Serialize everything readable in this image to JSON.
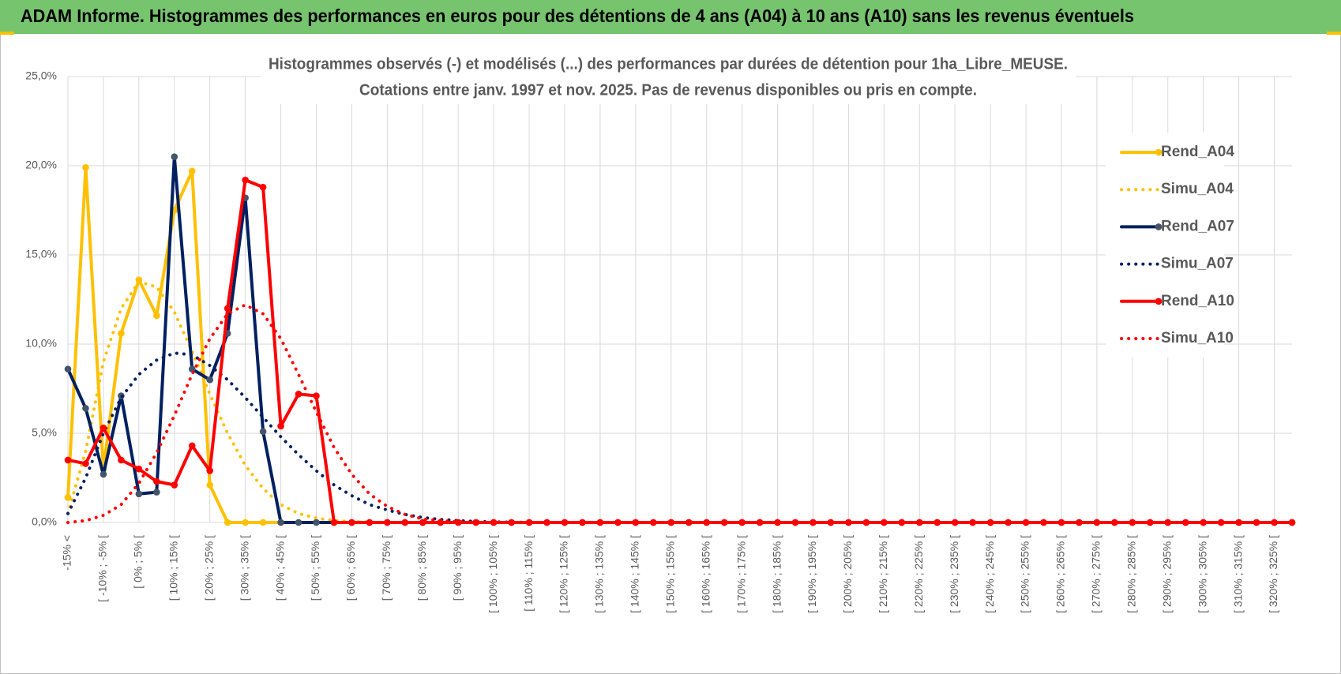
{
  "header": {
    "title": "ADAM Informe. Histogrammes des performances en euros pour des détentions de 4 ans (A04) à 10 ans (A10) sans les revenus éventuels"
  },
  "chart_data": {
    "type": "line",
    "title": "Histogrammes observés (-) et modélisés (...) des performances par durées de détention pour 1ha_Libre_MEUSE.",
    "subtitle": "Cotations entre janv. 1997 et nov. 2025. Pas de revenus disponibles ou pris en compte.",
    "categories": [
      "-15% <",
      null,
      "[ -10% ; -5% [",
      null,
      "[ 0% ; 5% [",
      null,
      "[ 10% ; 15% [",
      null,
      "[ 20% ; 25% [",
      null,
      "[ 30% ; 35% [",
      null,
      "[ 40% ; 45% [",
      null,
      "[ 50% ; 55% [",
      null,
      "[ 60% ; 65% [",
      null,
      "[ 70% ; 75% [",
      null,
      "[ 80% ; 85% [",
      null,
      "[ 90% ; 95% [",
      null,
      "[ 100% ; 105% [",
      null,
      "[ 110% ; 115% [",
      null,
      "[ 120% ; 125% [",
      null,
      "[ 130% ; 135% [",
      null,
      "[ 140% ; 145% [",
      null,
      "[ 150% ; 155% [",
      null,
      "[ 160% ; 165% [",
      null,
      "[ 170% ; 175% [",
      null,
      "[ 180% ; 185% [",
      null,
      "[ 190% ; 195% [",
      null,
      "[ 200% ; 205% [",
      null,
      "[ 210% ; 215% [",
      null,
      "[ 220% ; 225% [",
      null,
      "[ 230% ; 235% [",
      null,
      "[ 240% ; 245% [",
      null,
      "[ 250% ; 255% [",
      null,
      "[ 260% ; 265% [",
      null,
      "[ 270% ; 275% [",
      null,
      "[ 280% ; 285% [",
      null,
      "[ 290% ; 295% [",
      null,
      "[ 300% ; 305% [",
      null,
      "[ 310% ; 315% [",
      null,
      "[ 320% ; 325% [",
      null
    ],
    "series": [
      {
        "name": "Rend_A04",
        "color": "#ffc000",
        "line_style": "solid",
        "markers": true,
        "values": [
          1.4,
          19.9,
          3.0,
          10.6,
          13.6,
          11.6,
          17.5,
          19.7,
          2.1,
          0,
          0,
          0,
          0,
          0,
          0,
          0,
          0,
          0,
          0,
          0,
          0,
          0,
          0,
          0,
          0,
          0,
          0,
          0,
          0,
          0,
          0,
          0,
          0,
          0,
          0,
          0,
          0,
          0,
          0,
          0,
          0,
          0,
          0,
          0,
          0,
          0,
          0,
          0,
          0,
          0,
          0,
          0,
          0,
          0,
          0,
          0,
          0,
          0,
          0,
          0,
          0,
          0,
          0,
          0,
          0,
          0,
          0,
          0,
          0,
          0
        ]
      },
      {
        "name": "Simu_A04",
        "color": "#ffc000",
        "line_style": "dotted",
        "markers": false,
        "values": [
          0.5,
          4,
          9,
          12,
          13.5,
          13.2,
          11.8,
          9.6,
          7.2,
          5,
          3.2,
          1.9,
          1.0,
          0.5,
          0.25,
          0.1,
          0.05,
          0.02,
          0,
          0,
          0,
          0,
          0,
          0,
          0,
          0,
          0,
          0,
          0,
          0,
          0,
          0,
          0,
          0,
          0,
          0,
          0,
          0,
          0,
          0,
          0,
          0,
          0,
          0,
          0,
          0,
          0,
          0,
          0,
          0,
          0,
          0,
          0,
          0,
          0,
          0,
          0,
          0,
          0,
          0,
          0,
          0,
          0,
          0,
          0,
          0,
          0,
          0,
          0,
          0
        ]
      },
      {
        "name": "Rend_A07",
        "color": "#002060",
        "marker_color": "#44546a",
        "line_style": "solid",
        "markers": true,
        "values": [
          8.6,
          6.4,
          2.7,
          7.1,
          1.6,
          1.7,
          20.5,
          8.6,
          8.0,
          10.6,
          18.2,
          5.1,
          0,
          0,
          0,
          0,
          0,
          0,
          0,
          0,
          0,
          0,
          0,
          0,
          0,
          0,
          0,
          0,
          0,
          0,
          0,
          0,
          0,
          0,
          0,
          0,
          0,
          0,
          0,
          0,
          0,
          0,
          0,
          0,
          0,
          0,
          0,
          0,
          0,
          0,
          0,
          0,
          0,
          0,
          0,
          0,
          0,
          0,
          0,
          0,
          0,
          0,
          0,
          0,
          0,
          0,
          0,
          0,
          0,
          0
        ]
      },
      {
        "name": "Simu_A07",
        "color": "#002060",
        "line_style": "dotted",
        "markers": false,
        "values": [
          0.5,
          2.5,
          5,
          7,
          8.3,
          9.1,
          9.5,
          9.4,
          8.8,
          8.0,
          7.0,
          5.9,
          4.8,
          3.8,
          2.9,
          2.1,
          1.5,
          1.0,
          0.7,
          0.45,
          0.28,
          0.17,
          0.1,
          0.06,
          0.03,
          0.02,
          0,
          0,
          0,
          0,
          0,
          0,
          0,
          0,
          0,
          0,
          0,
          0,
          0,
          0,
          0,
          0,
          0,
          0,
          0,
          0,
          0,
          0,
          0,
          0,
          0,
          0,
          0,
          0,
          0,
          0,
          0,
          0,
          0,
          0,
          0,
          0,
          0,
          0,
          0,
          0,
          0,
          0,
          0,
          0
        ]
      },
      {
        "name": "Rend_A10",
        "color": "#ff0000",
        "line_style": "solid",
        "markers": true,
        "values": [
          3.5,
          3.3,
          5.3,
          3.5,
          3.0,
          2.3,
          2.1,
          4.3,
          2.9,
          12,
          19.2,
          18.8,
          5.4,
          7.2,
          7.1,
          0,
          0,
          0,
          0,
          0,
          0,
          0,
          0,
          0,
          0,
          0,
          0,
          0,
          0,
          0,
          0,
          0,
          0,
          0,
          0,
          0,
          0,
          0,
          0,
          0,
          0,
          0,
          0,
          0,
          0,
          0,
          0,
          0,
          0,
          0,
          0,
          0,
          0,
          0,
          0,
          0,
          0,
          0,
          0,
          0,
          0,
          0,
          0,
          0,
          0,
          0,
          0,
          0,
          0,
          0
        ]
      },
      {
        "name": "Simu_A10",
        "color": "#ff0000",
        "line_style": "dotted",
        "markers": false,
        "values": [
          0,
          0.1,
          0.4,
          1.0,
          2.2,
          3.9,
          6.0,
          8.3,
          10.3,
          11.7,
          12.2,
          11.7,
          10.3,
          8.3,
          6.2,
          4.2,
          2.7,
          1.6,
          0.9,
          0.45,
          0.2,
          0.1,
          0.04,
          0,
          0,
          0,
          0,
          0,
          0,
          0,
          0,
          0,
          0,
          0,
          0,
          0,
          0,
          0,
          0,
          0,
          0,
          0,
          0,
          0,
          0,
          0,
          0,
          0,
          0,
          0,
          0,
          0,
          0,
          0,
          0,
          0,
          0,
          0,
          0,
          0,
          0,
          0,
          0,
          0,
          0,
          0,
          0,
          0,
          0,
          0
        ]
      }
    ],
    "ylim": [
      0,
      25
    ],
    "yticks": [
      {
        "value": 0,
        "label": "0,0%"
      },
      {
        "value": 5,
        "label": "5,0%"
      },
      {
        "value": 10,
        "label": "10,0%"
      },
      {
        "value": 15,
        "label": "15,0%"
      },
      {
        "value": 20,
        "label": "20,0%"
      },
      {
        "value": 25,
        "label": "25,0%"
      }
    ],
    "grid": true,
    "legend": "right"
  }
}
